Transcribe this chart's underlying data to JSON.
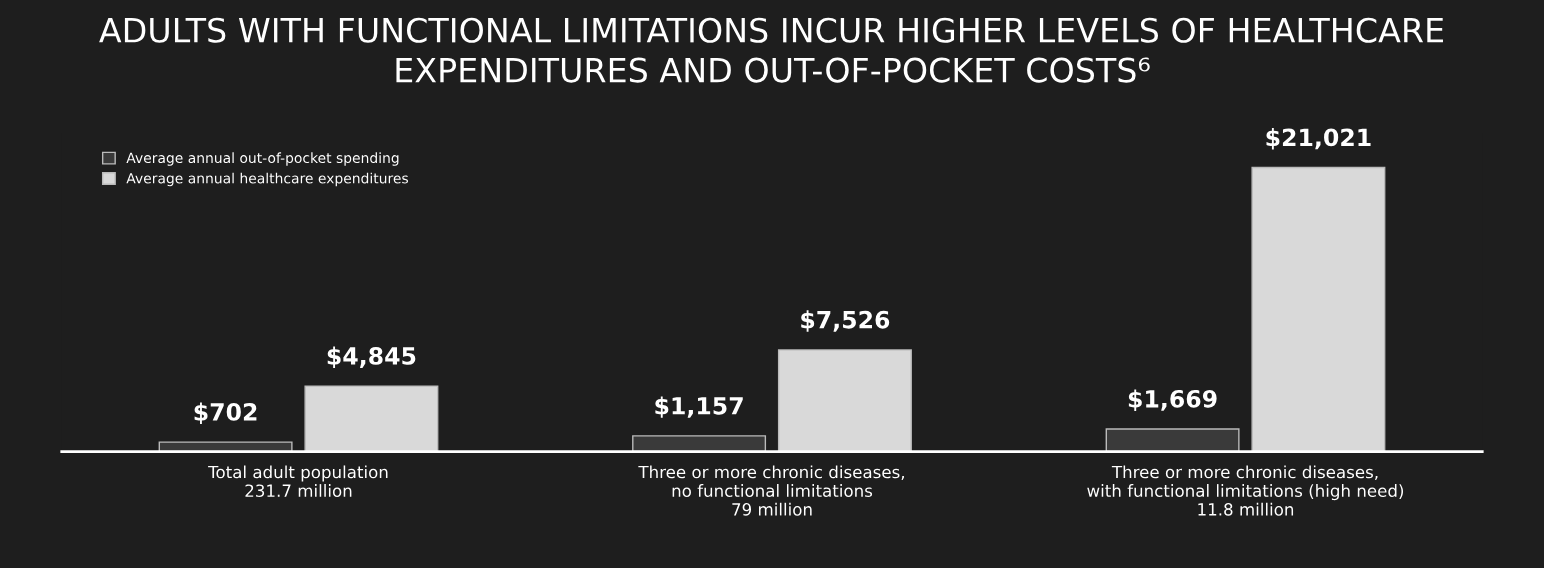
{
  "chart_data": {
    "type": "bar",
    "title": "ADULTS WITH FUNCTIONAL LIMITATIONS INCUR HIGHER LEVELS OF HEALTHCARE\nEXPENDITURES AND OUT-OF-POCKET COSTS⁶",
    "categories": [
      "Total adult population\n231.7 million",
      "Three or more chronic diseases,\nno functional limitations\n79 million",
      "Three or more chronic diseases,\nwith functional limitations (high need)\n11.8 million"
    ],
    "series": [
      {
        "name": "Average annual out-of-pocket spending",
        "color": "#3a3a3a",
        "values": [
          702,
          1157,
          1669
        ],
        "value_labels": [
          "$702",
          "$1,157",
          "$1,669"
        ]
      },
      {
        "name": "Average annual healthcare expenditures",
        "color": "#d9d9d9",
        "values": [
          4845,
          7526,
          21021
        ],
        "value_labels": [
          "$4,845",
          "$7,526",
          "$21,021"
        ]
      }
    ],
    "legend": "top left",
    "grid": false
  }
}
